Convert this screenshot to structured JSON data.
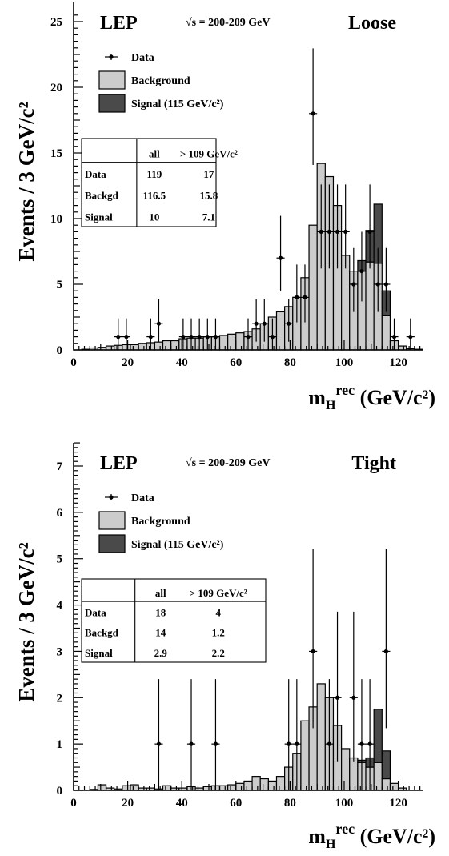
{
  "chart_data": [
    {
      "type": "histogram",
      "panel": "Loose",
      "experiment_label": "LEP",
      "energy_label": "√s = 200-209 GeV",
      "selection_label": "Loose",
      "ylabel": "Events / 3 GeV/c²",
      "xlabel_main": "m",
      "xlabel_sub": "H",
      "xlabel_sup": "rec",
      "xlabel_unit": " (GeV/c²)",
      "xlim": [
        0,
        129
      ],
      "ylim": [
        0,
        25.5
      ],
      "xticks": [
        0,
        20,
        40,
        60,
        80,
        100,
        120
      ],
      "yticks": [
        0,
        5,
        10,
        15,
        20,
        25
      ],
      "bin_width": 3,
      "legend": [
        {
          "key": "data",
          "label": "Data"
        },
        {
          "key": "background",
          "label": "Background"
        },
        {
          "key": "signal",
          "label": "Signal (115 GeV/c²)"
        }
      ],
      "table": {
        "headers": [
          "",
          "all",
          "> 109 GeV/c²"
        ],
        "rows": [
          [
            "Data",
            "119",
            "17"
          ],
          [
            "Backgd",
            "116.5",
            "15.8"
          ],
          [
            "Signal",
            "10",
            "7.1"
          ]
        ]
      },
      "bins": [
        {
          "x0": 3,
          "bg": 0.05
        },
        {
          "x0": 6,
          "bg": 0.15
        },
        {
          "x0": 9,
          "bg": 0.2
        },
        {
          "x0": 12,
          "bg": 0.3
        },
        {
          "x0": 15,
          "bg": 0.35
        },
        {
          "x0": 18,
          "bg": 0.4
        },
        {
          "x0": 21,
          "bg": 0.4
        },
        {
          "x0": 24,
          "bg": 0.5
        },
        {
          "x0": 27,
          "bg": 0.55
        },
        {
          "x0": 30,
          "bg": 0.6
        },
        {
          "x0": 33,
          "bg": 0.7
        },
        {
          "x0": 36,
          "bg": 0.7
        },
        {
          "x0": 39,
          "bg": 0.85
        },
        {
          "x0": 42,
          "bg": 0.9
        },
        {
          "x0": 45,
          "bg": 0.9
        },
        {
          "x0": 48,
          "bg": 1.0
        },
        {
          "x0": 51,
          "bg": 1.0
        },
        {
          "x0": 54,
          "bg": 1.1
        },
        {
          "x0": 57,
          "bg": 1.2
        },
        {
          "x0": 60,
          "bg": 1.3
        },
        {
          "x0": 63,
          "bg": 1.4
        },
        {
          "x0": 66,
          "bg": 1.6
        },
        {
          "x0": 69,
          "bg": 2.0
        },
        {
          "x0": 72,
          "bg": 2.5
        },
        {
          "x0": 75,
          "bg": 2.9
        },
        {
          "x0": 78,
          "bg": 3.3
        },
        {
          "x0": 81,
          "bg": 4.0
        },
        {
          "x0": 84,
          "bg": 5.5
        },
        {
          "x0": 87,
          "bg": 9.5
        },
        {
          "x0": 90,
          "bg": 14.2
        },
        {
          "x0": 93,
          "bg": 13.2
        },
        {
          "x0": 96,
          "bg": 11.0
        },
        {
          "x0": 99,
          "bg": 7.2
        },
        {
          "x0": 102,
          "bg": 6.0
        },
        {
          "x0": 105,
          "bg": 6.0,
          "sig": 0.8
        },
        {
          "x0": 108,
          "bg": 6.7,
          "sig": 2.4
        },
        {
          "x0": 111,
          "bg": 6.6,
          "sig": 4.5
        },
        {
          "x0": 114,
          "bg": 2.6,
          "sig": 1.9
        },
        {
          "x0": 117,
          "bg": 0.7
        },
        {
          "x0": 120,
          "bg": 0.3
        },
        {
          "x0": 123,
          "bg": 0.1
        },
        {
          "x0": 126,
          "bg": 0.05
        }
      ],
      "points": [
        {
          "x": 16.5,
          "y": 1
        },
        {
          "x": 19.5,
          "y": 1
        },
        {
          "x": 28.5,
          "y": 1
        },
        {
          "x": 31.5,
          "y": 2
        },
        {
          "x": 40.5,
          "y": 1
        },
        {
          "x": 43.5,
          "y": 1
        },
        {
          "x": 46.5,
          "y": 1
        },
        {
          "x": 49.5,
          "y": 1
        },
        {
          "x": 52.5,
          "y": 1
        },
        {
          "x": 64.5,
          "y": 1
        },
        {
          "x": 67.5,
          "y": 2
        },
        {
          "x": 70.5,
          "y": 2
        },
        {
          "x": 73.5,
          "y": 1
        },
        {
          "x": 76.5,
          "y": 7
        },
        {
          "x": 79.5,
          "y": 2
        },
        {
          "x": 82.5,
          "y": 4
        },
        {
          "x": 85.5,
          "y": 4
        },
        {
          "x": 88.5,
          "y": 18
        },
        {
          "x": 91.5,
          "y": 9
        },
        {
          "x": 94.5,
          "y": 9
        },
        {
          "x": 97.5,
          "y": 9
        },
        {
          "x": 100.5,
          "y": 9
        },
        {
          "x": 103.5,
          "y": 5
        },
        {
          "x": 106.5,
          "y": 6
        },
        {
          "x": 109.5,
          "y": 9
        },
        {
          "x": 112.5,
          "y": 5
        },
        {
          "x": 115.5,
          "y": 5
        },
        {
          "x": 118.5,
          "y": 1
        },
        {
          "x": 124.5,
          "y": 1
        }
      ]
    },
    {
      "type": "histogram",
      "panel": "Tight",
      "experiment_label": "LEP",
      "energy_label": "√s = 200-209 GeV",
      "selection_label": "Tight",
      "ylabel": "Events / 3 GeV/c²",
      "xlabel_main": "m",
      "xlabel_sub": "H",
      "xlabel_sup": "rec",
      "xlabel_unit": " (GeV/c²)",
      "xlim": [
        0,
        129
      ],
      "ylim": [
        0,
        7.6
      ],
      "xticks": [
        0,
        20,
        40,
        60,
        80,
        100,
        120
      ],
      "yticks": [
        0,
        1,
        2,
        3,
        4,
        5,
        6,
        7
      ],
      "bin_width": 3,
      "legend": [
        {
          "key": "data",
          "label": "Data"
        },
        {
          "key": "background",
          "label": "Background"
        },
        {
          "key": "signal",
          "label": "Signal (115 GeV/c²)"
        }
      ],
      "table": {
        "headers": [
          "",
          "all",
          "> 109 GeV/c²"
        ],
        "rows": [
          [
            "Data",
            "18",
            "4"
          ],
          [
            "Backgd",
            "14",
            "1.2"
          ],
          [
            "Signal",
            "2.9",
            "2.2"
          ]
        ]
      },
      "bins": [
        {
          "x0": 6,
          "bg": 0.02
        },
        {
          "x0": 9,
          "bg": 0.12
        },
        {
          "x0": 12,
          "bg": 0.05
        },
        {
          "x0": 15,
          "bg": 0.03
        },
        {
          "x0": 18,
          "bg": 0.1
        },
        {
          "x0": 21,
          "bg": 0.12
        },
        {
          "x0": 24,
          "bg": 0.05
        },
        {
          "x0": 27,
          "bg": 0.05
        },
        {
          "x0": 30,
          "bg": 0.03
        },
        {
          "x0": 33,
          "bg": 0.1
        },
        {
          "x0": 36,
          "bg": 0.05
        },
        {
          "x0": 39,
          "bg": 0.05
        },
        {
          "x0": 42,
          "bg": 0.08
        },
        {
          "x0": 45,
          "bg": 0.05
        },
        {
          "x0": 48,
          "bg": 0.08
        },
        {
          "x0": 51,
          "bg": 0.1
        },
        {
          "x0": 54,
          "bg": 0.1
        },
        {
          "x0": 57,
          "bg": 0.12
        },
        {
          "x0": 60,
          "bg": 0.15
        },
        {
          "x0": 63,
          "bg": 0.2
        },
        {
          "x0": 66,
          "bg": 0.3
        },
        {
          "x0": 69,
          "bg": 0.25
        },
        {
          "x0": 72,
          "bg": 0.2
        },
        {
          "x0": 75,
          "bg": 0.3
        },
        {
          "x0": 78,
          "bg": 0.5
        },
        {
          "x0": 81,
          "bg": 0.8
        },
        {
          "x0": 84,
          "bg": 1.5
        },
        {
          "x0": 87,
          "bg": 1.8
        },
        {
          "x0": 90,
          "bg": 2.3
        },
        {
          "x0": 93,
          "bg": 2.0
        },
        {
          "x0": 96,
          "bg": 1.4
        },
        {
          "x0": 99,
          "bg": 0.9
        },
        {
          "x0": 102,
          "bg": 0.7
        },
        {
          "x0": 105,
          "bg": 0.6,
          "sig": 0.05
        },
        {
          "x0": 108,
          "bg": 0.5,
          "sig": 0.2
        },
        {
          "x0": 111,
          "bg": 0.6,
          "sig": 1.15
        },
        {
          "x0": 114,
          "bg": 0.25,
          "sig": 0.6
        },
        {
          "x0": 117,
          "bg": 0.15
        },
        {
          "x0": 120,
          "bg": 0.05
        }
      ],
      "points": [
        {
          "x": 31.5,
          "y": 1
        },
        {
          "x": 43.5,
          "y": 1
        },
        {
          "x": 52.5,
          "y": 1
        },
        {
          "x": 79.5,
          "y": 1
        },
        {
          "x": 82.5,
          "y": 1
        },
        {
          "x": 88.5,
          "y": 3
        },
        {
          "x": 94.5,
          "y": 1
        },
        {
          "x": 97.5,
          "y": 2
        },
        {
          "x": 103.5,
          "y": 2
        },
        {
          "x": 106.5,
          "y": 1
        },
        {
          "x": 109.5,
          "y": 1
        },
        {
          "x": 115.5,
          "y": 3
        }
      ]
    }
  ]
}
